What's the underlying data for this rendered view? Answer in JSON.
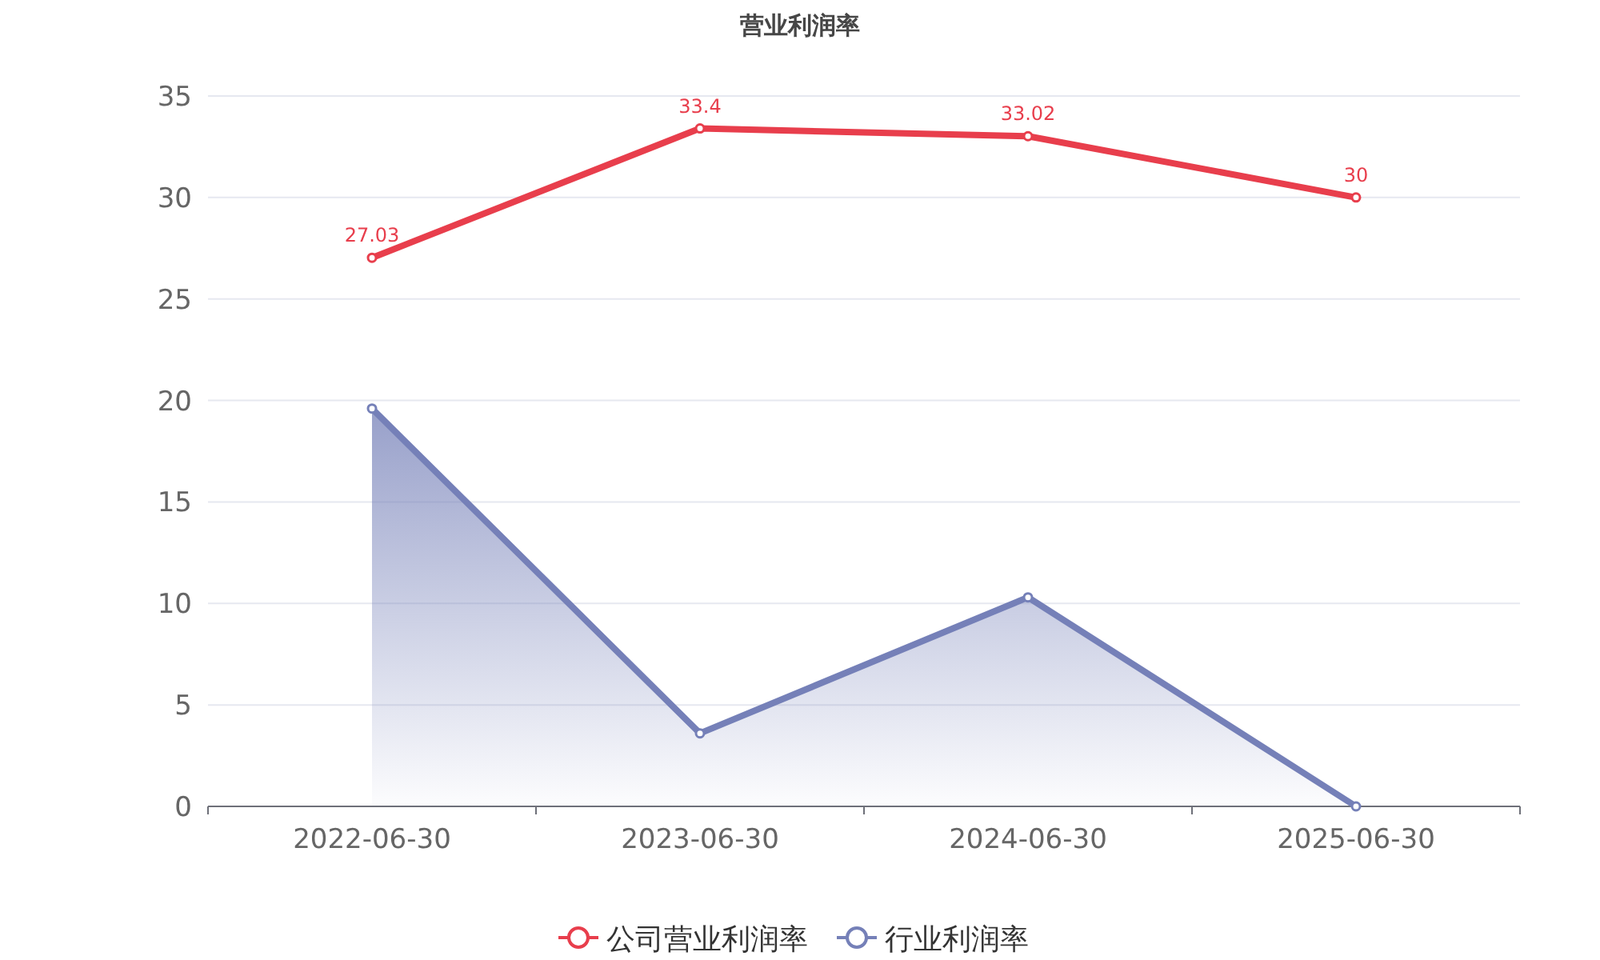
{
  "chart_data": {
    "type": "line",
    "title": "营业利润率",
    "categories": [
      "2022-06-30",
      "2023-06-30",
      "2024-06-30",
      "2025-06-30"
    ],
    "series": [
      {
        "name": "公司营业利润率",
        "color": "#e83e4c",
        "values": [
          27.03,
          33.4,
          33.02,
          30
        ],
        "value_labels": [
          "27.03",
          "33.4",
          "33.02",
          "30"
        ]
      },
      {
        "name": "行业利润率",
        "type": "area",
        "color": "#7580b8",
        "values": [
          19.6,
          3.6,
          10.3,
          0
        ]
      }
    ],
    "ylim": [
      0,
      35
    ],
    "yticks": [
      0,
      5,
      10,
      15,
      20,
      25,
      30,
      35
    ],
    "grid": "y",
    "legend": "bottom",
    "marker": "circle"
  }
}
